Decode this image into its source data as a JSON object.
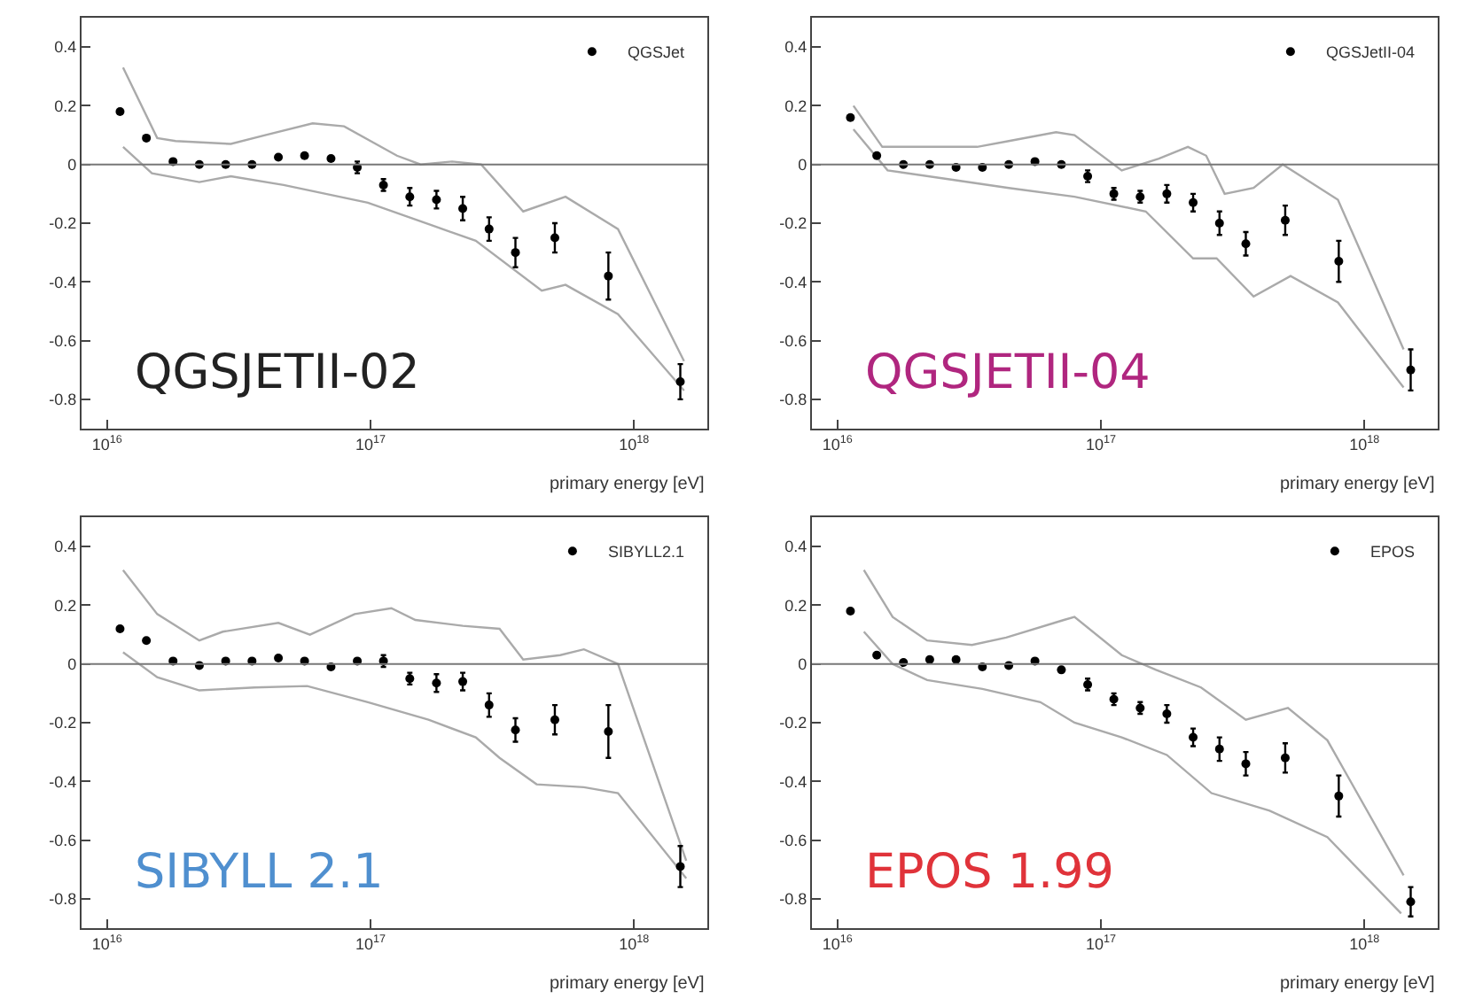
{
  "chart_data": [
    {
      "type": "scatter",
      "xlabel": "primary energy [eV]",
      "annotations": [
        "QGSJETII-02"
      ],
      "legend": "top right",
      "marker": "circle",
      "grid": false,
      "log": "x",
      "xlim": [
        8000000000000000.0,
        1.9e+18
      ],
      "xticks": [
        {
          "value": 1e+16,
          "label": "10$^{16}$"
        },
        {
          "value": 1e+17,
          "label": "10$^{17}$"
        },
        {
          "value": 1e+18,
          "label": "10$^{18}$"
        }
      ],
      "ylim": [
        -0.9,
        0.5
      ],
      "yticks": [
        -0.8,
        -0.6,
        -0.4,
        -0.2,
        0,
        0.2,
        0.4
      ],
      "ref_lines": [
        {
          "axis": "y",
          "value": 0,
          "color": "#777777"
        }
      ],
      "series": [
        {
          "type": "line",
          "marker": "none",
          "color": "#aaaaaa",
          "x": [
            1.15e+16,
            1.55e+16,
            1.82e+16,
            2.95e+16,
            3.98e+16,
            6.03e+16,
            7.94e+16,
            1.26e+17,
            1.55e+17,
            2.04e+17,
            2.63e+17,
            3.8e+17,
            5.5e+17,
            8.7e+17,
            1.55e+18
          ],
          "values": [
            0.33,
            0.09,
            0.08,
            0.07,
            0.1,
            0.14,
            0.13,
            0.03,
            0,
            0.01,
            0,
            -0.16,
            -0.11,
            -0.22,
            -0.67
          ]
        },
        {
          "type": "line",
          "marker": "none",
          "color": "#aaaaaa",
          "x": [
            1.15e+16,
            1.48e+16,
            2.24e+16,
            2.95e+16,
            4.68e+16,
            9.77e+16,
            2.51e+17,
            4.47e+17,
            5.5e+17,
            8.7e+17,
            1.55e+18
          ],
          "values": [
            0.06,
            -0.03,
            -0.06,
            -0.04,
            -0.07,
            -0.13,
            -0.26,
            -0.43,
            -0.41,
            -0.51,
            -0.77
          ]
        },
        {
          "name": "QGSJet",
          "color": "#000000",
          "x": [
            1.12e+16,
            1.41e+16,
            1.78e+16,
            2.24e+16,
            2.82e+16,
            3.55e+16,
            4.47e+16,
            5.62e+16,
            7.08e+16,
            8.91e+16,
            1.12e+17,
            1.41e+17,
            1.78e+17,
            2.24e+17,
            2.82e+17,
            3.55e+17,
            5.01e+17,
            8e+17,
            1.5e+18
          ],
          "values": [
            0.18,
            0.09,
            0.01,
            0,
            0,
            0,
            0.025,
            0.03,
            0.02,
            -0.01,
            -0.07,
            -0.11,
            -0.12,
            -0.15,
            -0.22,
            -0.3,
            -0.25,
            -0.38,
            -0.74
          ],
          "errors": [
            null,
            null,
            null,
            null,
            null,
            null,
            null,
            null,
            null,
            0.02,
            0.02,
            0.03,
            0.03,
            0.04,
            0.04,
            0.05,
            0.05,
            0.08,
            0.06
          ]
        }
      ]
    },
    {
      "type": "scatter",
      "xlabel": "primary energy [eV]",
      "annotations": [
        "QGSJETII-04"
      ],
      "legend": "top right",
      "marker": "circle",
      "grid": false,
      "log": "x",
      "xlim": [
        8000000000000000.0,
        1.9e+18
      ],
      "xticks": [
        {
          "value": 1e+16,
          "label": "10$^{16}$"
        },
        {
          "value": 1e+17,
          "label": "10$^{17}$"
        },
        {
          "value": 1e+18,
          "label": "10$^{18}$"
        }
      ],
      "ylim": [
        -0.9,
        0.5
      ],
      "yticks": [
        -0.8,
        -0.6,
        -0.4,
        -0.2,
        0,
        0.2,
        0.4
      ],
      "ref_lines": [
        {
          "axis": "y",
          "value": 0,
          "color": "#777777"
        }
      ],
      "series": [
        {
          "type": "line",
          "marker": "none",
          "color": "#aaaaaa",
          "x": [
            1.15e+16,
            1.48e+16,
            2.04e+16,
            3.39e+16,
            4.47e+16,
            6.76e+16,
            7.94e+16,
            1.2e+17,
            1.66e+17,
            2.14e+17,
            2.51e+17,
            2.95e+17,
            3.8e+17,
            4.9e+17,
            7.94e+17,
            1.41e+18
          ],
          "values": [
            0.2,
            0.06,
            0.06,
            0.06,
            0.08,
            0.11,
            0.1,
            -0.02,
            0.02,
            0.06,
            0.03,
            -0.1,
            -0.08,
            0,
            -0.12,
            -0.63
          ]
        },
        {
          "type": "line",
          "marker": "none",
          "color": "#aaaaaa",
          "x": [
            1.15e+16,
            1.55e+16,
            2.63e+16,
            4.47e+16,
            7.94e+16,
            1.48e+17,
            2.24e+17,
            2.75e+17,
            3.8e+17,
            5.25e+17,
            7.94e+17,
            1.41e+18
          ],
          "values": [
            0.12,
            -0.02,
            -0.05,
            -0.08,
            -0.11,
            -0.16,
            -0.32,
            -0.32,
            -0.45,
            -0.38,
            -0.47,
            -0.76
          ]
        },
        {
          "name": "QGSJetII-04",
          "color": "#000000",
          "x": [
            1.12e+16,
            1.41e+16,
            1.78e+16,
            2.24e+16,
            2.82e+16,
            3.55e+16,
            4.47e+16,
            5.62e+16,
            7.08e+16,
            8.91e+16,
            1.12e+17,
            1.41e+17,
            1.78e+17,
            2.24e+17,
            2.82e+17,
            3.55e+17,
            5.01e+17,
            8e+17,
            1.5e+18
          ],
          "values": [
            0.16,
            0.03,
            0,
            0,
            -0.01,
            -0.01,
            0,
            0.01,
            0,
            -0.04,
            -0.1,
            -0.11,
            -0.1,
            -0.13,
            -0.2,
            -0.27,
            -0.19,
            -0.33,
            -0.7
          ],
          "errors": [
            null,
            null,
            null,
            null,
            null,
            null,
            null,
            null,
            null,
            0.02,
            0.02,
            0.02,
            0.03,
            0.03,
            0.04,
            0.04,
            0.05,
            0.07,
            0.07
          ]
        }
      ]
    },
    {
      "type": "scatter",
      "xlabel": "primary energy [eV]",
      "annotations": [
        "SIBYLL 2.1"
      ],
      "legend": "top right",
      "marker": "circle",
      "grid": false,
      "log": "x",
      "xlim": [
        8000000000000000.0,
        1.9e+18
      ],
      "xticks": [
        {
          "value": 1e+16,
          "label": "10$^{16}$"
        },
        {
          "value": 1e+17,
          "label": "10$^{17}$"
        },
        {
          "value": 1e+18,
          "label": "10$^{18}$"
        }
      ],
      "ylim": [
        -0.9,
        0.5
      ],
      "yticks": [
        -0.8,
        -0.6,
        -0.4,
        -0.2,
        0,
        0.2,
        0.4
      ],
      "ref_lines": [
        {
          "axis": "y",
          "value": 0,
          "color": "#777777"
        }
      ],
      "series": [
        {
          "type": "line",
          "marker": "none",
          "color": "#aaaaaa",
          "x": [
            1.15e+16,
            1.55e+16,
            2.24e+16,
            2.75e+16,
            4.47e+16,
            5.89e+16,
            8.71e+16,
            1.2e+17,
            1.48e+17,
            2.24e+17,
            3.09e+17,
            3.8e+17,
            5.25e+17,
            6.46e+17,
            8.7e+17,
            1.58e+18
          ],
          "values": [
            0.32,
            0.17,
            0.08,
            0.11,
            0.14,
            0.1,
            0.17,
            0.19,
            0.15,
            0.13,
            0.12,
            0.015,
            0.03,
            0.05,
            0,
            -0.67
          ]
        },
        {
          "type": "line",
          "marker": "none",
          "color": "#aaaaaa",
          "x": [
            1.15e+16,
            1.55e+16,
            2.24e+16,
            3.63e+16,
            5.75e+16,
            9.77e+16,
            1.66e+17,
            2.51e+17,
            3.09e+17,
            4.27e+17,
            6.46e+17,
            8.7e+17,
            1.58e+18
          ],
          "values": [
            0.04,
            -0.045,
            -0.09,
            -0.08,
            -0.075,
            -0.13,
            -0.19,
            -0.25,
            -0.32,
            -0.41,
            -0.42,
            -0.44,
            -0.73
          ]
        },
        {
          "name": "SIBYLL2.1",
          "color": "#000000",
          "x": [
            1.12e+16,
            1.41e+16,
            1.78e+16,
            2.24e+16,
            2.82e+16,
            3.55e+16,
            4.47e+16,
            5.62e+16,
            7.08e+16,
            8.91e+16,
            1.12e+17,
            1.41e+17,
            1.78e+17,
            2.24e+17,
            2.82e+17,
            3.55e+17,
            5.01e+17,
            8e+17,
            1.5e+18
          ],
          "values": [
            0.12,
            0.08,
            0.01,
            -0.005,
            0.01,
            0.01,
            0.02,
            0.01,
            -0.01,
            0.01,
            0.01,
            -0.05,
            -0.065,
            -0.06,
            -0.14,
            -0.225,
            -0.19,
            -0.23,
            -0.69
          ],
          "errors": [
            null,
            null,
            null,
            null,
            null,
            null,
            null,
            null,
            null,
            null,
            0.02,
            0.02,
            0.03,
            0.03,
            0.04,
            0.04,
            0.05,
            0.09,
            0.07
          ]
        }
      ]
    },
    {
      "type": "scatter",
      "xlabel": "primary energy [eV]",
      "annotations": [
        "EPOS 1.99"
      ],
      "legend": "top right",
      "marker": "circle",
      "grid": false,
      "log": "x",
      "xlim": [
        8000000000000000.0,
        1.9e+18
      ],
      "xticks": [
        {
          "value": 1e+16,
          "label": "10$^{16}$"
        },
        {
          "value": 1e+17,
          "label": "10$^{17}$"
        },
        {
          "value": 1e+18,
          "label": "10$^{18}$"
        }
      ],
      "ylim": [
        -0.9,
        0.5
      ],
      "yticks": [
        -0.8,
        -0.6,
        -0.4,
        -0.2,
        0,
        0.2,
        0.4
      ],
      "ref_lines": [
        {
          "axis": "y",
          "value": 0,
          "color": "#777777"
        }
      ],
      "series": [
        {
          "type": "line",
          "marker": "none",
          "color": "#aaaaaa",
          "x": [
            1.26e+16,
            1.62e+16,
            2.19e+16,
            3.24e+16,
            4.37e+16,
            7.24e+16,
            7.94e+16,
            1.2e+17,
            1.62e+17,
            2.4e+17,
            3.55e+17,
            5.13e+17,
            7.24e+17,
            1.41e+18
          ],
          "values": [
            0.32,
            0.16,
            0.08,
            0.065,
            0.09,
            0.15,
            0.16,
            0.03,
            -0.02,
            -0.08,
            -0.19,
            -0.15,
            -0.26,
            -0.72
          ]
        },
        {
          "type": "line",
          "marker": "none",
          "color": "#aaaaaa",
          "x": [
            1.26e+16,
            1.62e+16,
            2.19e+16,
            3.55e+16,
            5.89e+16,
            7.94e+16,
            1.2e+17,
            1.78e+17,
            2.63e+17,
            4.37e+17,
            7.24e+17,
            1.38e+18
          ],
          "values": [
            0.11,
            0,
            -0.055,
            -0.085,
            -0.13,
            -0.2,
            -0.25,
            -0.31,
            -0.44,
            -0.5,
            -0.59,
            -0.85
          ]
        },
        {
          "name": "EPOS",
          "color": "#000000",
          "x": [
            1.12e+16,
            1.41e+16,
            1.78e+16,
            2.24e+16,
            2.82e+16,
            3.55e+16,
            4.47e+16,
            5.62e+16,
            7.08e+16,
            8.91e+16,
            1.12e+17,
            1.41e+17,
            1.78e+17,
            2.24e+17,
            2.82e+17,
            3.55e+17,
            5.01e+17,
            8e+17,
            1.5e+18
          ],
          "values": [
            0.18,
            0.03,
            0.005,
            0.015,
            0.015,
            -0.01,
            -0.005,
            0.01,
            -0.02,
            -0.07,
            -0.12,
            -0.15,
            -0.17,
            -0.25,
            -0.29,
            -0.34,
            -0.32,
            -0.45,
            -0.81
          ],
          "errors": [
            null,
            null,
            null,
            null,
            null,
            null,
            null,
            null,
            null,
            0.02,
            0.02,
            0.02,
            0.03,
            0.03,
            0.04,
            0.04,
            0.05,
            0.07,
            0.05
          ]
        }
      ]
    }
  ]
}
